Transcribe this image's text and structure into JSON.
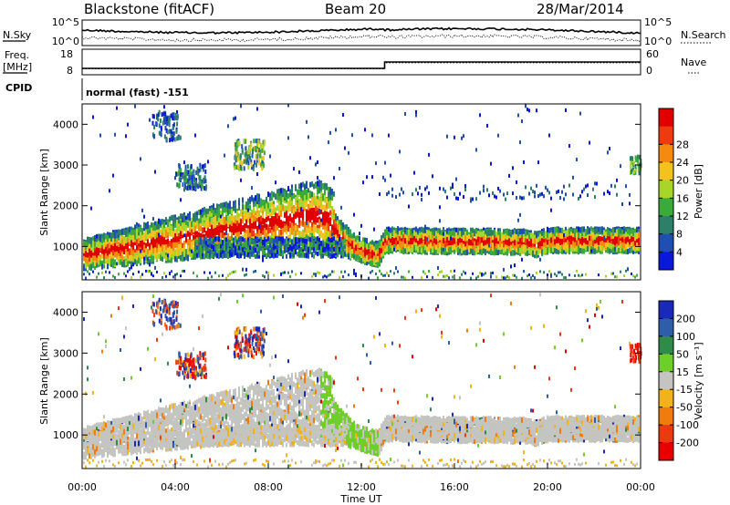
{
  "header": {
    "station": "Blackstone (fitACF)",
    "beam": "Beam 20",
    "date": "28/Mar/2014"
  },
  "noise_panel": {
    "left_label": "N.Sky",
    "right_label": "N.Search",
    "left_ticks": [
      "10^5",
      "10^0"
    ],
    "right_ticks": [
      "10^5",
      "10^0"
    ]
  },
  "freq_panel": {
    "left_label_top": "Freq.",
    "left_label_bottom": "[MHz]",
    "right_label": "Nave",
    "left_ticks": [
      "18",
      "8"
    ],
    "right_ticks": [
      "60",
      "0"
    ]
  },
  "cpid": {
    "label": "CPID",
    "mode_text": "normal (fast) -151"
  },
  "x_axis": {
    "label": "Time UT",
    "ticks": [
      "00:00",
      "04:00",
      "08:00",
      "12:00",
      "16:00",
      "20:00",
      "00:00"
    ]
  },
  "power_panel": {
    "ylabel": "Slant Range [km]",
    "yticks": [
      "1000",
      "2000",
      "3000",
      "4000"
    ],
    "colorbar_label": "Power [dB]",
    "colorbar_ticks": [
      "4",
      "8",
      "12",
      "16",
      "20",
      "24",
      "28"
    ],
    "colors": [
      "#0a18d8",
      "#1f4fb2",
      "#2e7f6a",
      "#3aaa3a",
      "#a8d52a",
      "#f4c21e",
      "#f48a10",
      "#ee3a10",
      "#e00000"
    ]
  },
  "velocity_panel": {
    "ylabel": "Slant Range [km]",
    "yticks": [
      "1000",
      "2000",
      "3000",
      "4000"
    ],
    "colorbar_label": "Velocity [m s⁻¹]",
    "colorbar_ticks": [
      "200",
      "100",
      "50",
      "15",
      "-15",
      "-50",
      "-100",
      "-200"
    ],
    "colors": [
      "#1a2ab8",
      "#2e5ea8",
      "#2f8b4a",
      "#6fcf2a",
      "#c4c4c0",
      "#f2b21e",
      "#f07c10",
      "#ec3a10",
      "#e80000"
    ]
  },
  "chart_data": {
    "type": "heatmap",
    "x_range_hours": [
      0,
      24
    ],
    "y_range_km": [
      180,
      4500
    ],
    "frequency_mhz": {
      "x": [
        "00:00",
        "13:00",
        "13:00",
        "24:00"
      ],
      "values": [
        10.5,
        10.5,
        13,
        13
      ]
    },
    "nave": {
      "x": [
        "00:00",
        "13:00",
        "13:00",
        "24:00"
      ],
      "values": [
        14,
        14,
        28,
        28
      ]
    },
    "main_echo_band": {
      "x_hours": [
        0,
        1,
        2,
        3,
        4,
        5,
        6,
        7,
        8,
        9,
        10,
        10.5,
        11,
        11.5,
        12,
        12.7,
        13,
        14,
        16,
        18,
        19,
        19.5,
        20,
        22,
        24
      ],
      "range_km": [
        800,
        900,
        1000,
        1100,
        1200,
        1300,
        1400,
        1500,
        1600,
        1700,
        1800,
        1700,
        1300,
        1050,
        900,
        800,
        1150,
        1150,
        1120,
        1120,
        1100,
        1050,
        1150,
        1150,
        1150
      ]
    }
  }
}
